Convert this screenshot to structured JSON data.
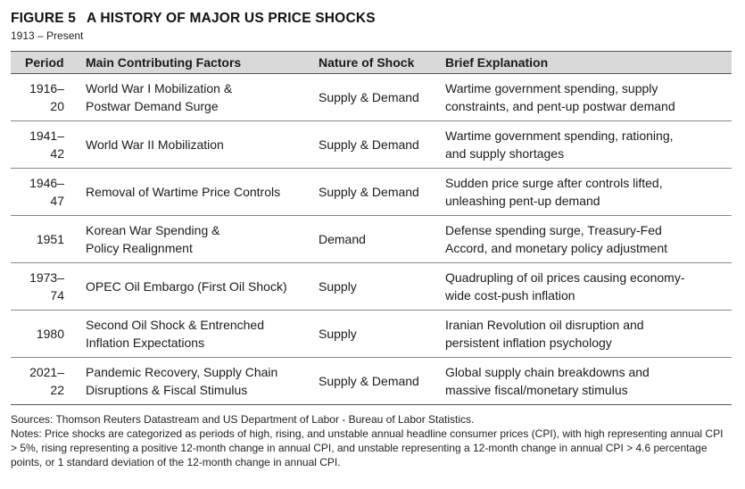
{
  "figure": {
    "number": "FIGURE 5",
    "title": "A HISTORY OF MAJOR US PRICE SHOCKS",
    "subtitle": "1913 – Present"
  },
  "table": {
    "headers": [
      "Period",
      "Main Contributing Factors",
      "Nature of Shock",
      "Brief Explanation"
    ],
    "rows": [
      {
        "period": "1916–20",
        "factors": "World War I Mobilization &\nPostwar Demand Surge",
        "nature": "Supply & Demand",
        "explanation": "Wartime government spending, supply\nconstraints, and pent-up postwar demand"
      },
      {
        "period": "1941–42",
        "factors": "World War II Mobilization",
        "nature": "Supply & Demand",
        "explanation": "Wartime government spending, rationing,\nand supply shortages"
      },
      {
        "period": "1946–47",
        "factors": "Removal of Wartime Price Controls",
        "nature": "Supply & Demand",
        "explanation": "Sudden price surge after controls lifted,\nunleashing pent-up demand"
      },
      {
        "period": "1951",
        "factors": "Korean War Spending &\nPolicy Realignment",
        "nature": "Demand",
        "explanation": "Defense spending surge, Treasury-Fed\nAccord, and monetary policy adjustment"
      },
      {
        "period": "1973–74",
        "factors": "OPEC Oil Embargo (First Oil Shock)",
        "nature": "Supply",
        "explanation": "Quadrupling of oil prices causing economy-\nwide cost-push inflation"
      },
      {
        "period": "1980",
        "factors": "Second Oil Shock & Entrenched\nInflation Expectations",
        "nature": "Supply",
        "explanation": "Iranian Revolution oil disruption and\npersistent inflation psychology"
      },
      {
        "period": "2021–22",
        "factors": "Pandemic Recovery, Supply Chain\nDisruptions & Fiscal Stimulus",
        "nature": "Supply & Demand",
        "explanation": "Global supply chain breakdowns and\nmassive fiscal/monetary stimulus"
      }
    ]
  },
  "notes": {
    "sources": "Sources: Thomson Reuters Datastream and US Department of Labor - Bureau of Labor Statistics.",
    "notes": "Notes: Price shocks are categorized as periods of high, rising, and unstable annual headline consumer prices (CPI), with high representing annual CPI > 5%, rising representing a positive 12-month change in annual CPI, and unstable representing a 12-month change in annual CPI > 4.6 percentage points, or 1 standard deviation of the 12-month change in annual CPI."
  }
}
